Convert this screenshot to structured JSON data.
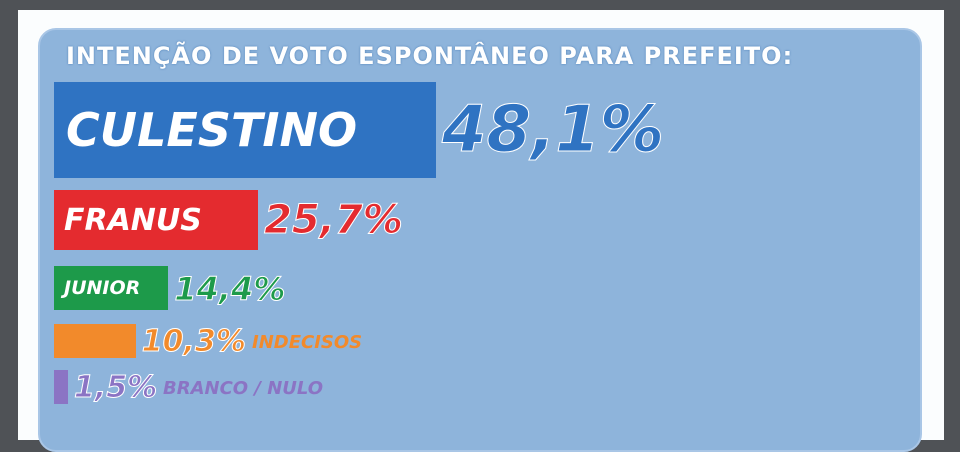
{
  "chart_data": {
    "type": "bar",
    "title": "INTENÇÃO DE VOTO ESPONTÂNEO PARA PREFEITO:",
    "categories": [
      "CULESTINO",
      "FRANUS",
      "JUNIOR",
      "INDECISOS",
      "BRANCO / NULO"
    ],
    "values": [
      48.1,
      25.7,
      14.4,
      10.3,
      1.5
    ],
    "value_labels": [
      "48,1%",
      "25,7%",
      "14,4%",
      "10,3%",
      "1,5%"
    ],
    "bar_names": [
      "CULESTINO",
      "FRANUS",
      "JUNIOR",
      "",
      ""
    ],
    "suffix_labels": [
      "",
      "",
      "",
      "INDECISOS",
      "BRANCO / NULO"
    ],
    "colors": [
      "#2f73c2",
      "#e42b2f",
      "#1d9a4a",
      "#f28a2b",
      "#8b74c4"
    ],
    "xlim": [
      0,
      50
    ]
  }
}
